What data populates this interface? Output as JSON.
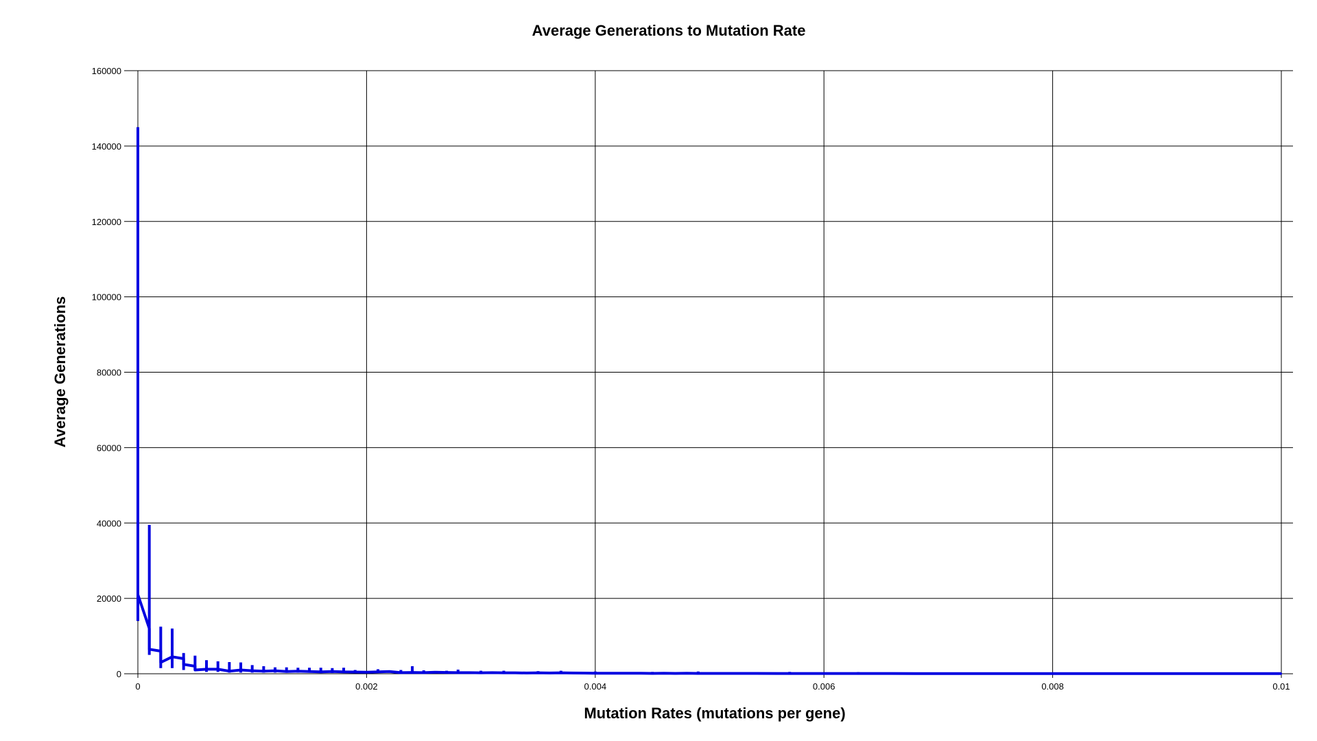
{
  "colors": {
    "series": "#0000e0",
    "grid": "#000000",
    "background": "#ffffff"
  },
  "chart_data": {
    "type": "line",
    "title": "Average Generations to Mutation Rate",
    "xlabel": "Mutation Rates (mutations per gene)",
    "ylabel": "Average Generations",
    "xlim": [
      0,
      0.01
    ],
    "ylim": [
      0,
      160000
    ],
    "x_ticks": [
      0,
      0.002,
      0.004,
      0.006,
      0.008,
      0.01
    ],
    "x_tick_labels": [
      "0",
      "0.002",
      "0.004",
      "0.006",
      "0.008",
      "0.01"
    ],
    "y_ticks": [
      0,
      20000,
      40000,
      60000,
      80000,
      100000,
      120000,
      140000,
      160000
    ],
    "y_tick_labels": [
      "0",
      "20000",
      "40000",
      "60000",
      "80000",
      "100000",
      "120000",
      "140000",
      "160000"
    ],
    "grid": true,
    "legend": "none",
    "series": [
      {
        "x": [
          0,
          0.0001,
          0.0001,
          0.0002,
          0.0002,
          0.0003,
          0.0004,
          0.0004,
          0.0005,
          0.0005,
          0.0006,
          0.0007,
          0.0008,
          0.0009,
          0.001,
          0.0011,
          0.0012,
          0.0013,
          0.0014,
          0.0015,
          0.0016,
          0.0017,
          0.0018,
          0.0019,
          0.002,
          0.0021,
          0.0022,
          0.0023,
          0.0024,
          0.0025,
          0.0026,
          0.0027,
          0.0028,
          0.0029,
          0.003,
          0.0031,
          0.0032,
          0.0033,
          0.0034,
          0.0035,
          0.0036,
          0.0037,
          0.0038,
          0.0039,
          0.004,
          0.0041,
          0.0042,
          0.0043,
          0.0044,
          0.0045,
          0.0046,
          0.0047,
          0.0048,
          0.0049,
          0.005,
          0.0052,
          0.0054,
          0.0056,
          0.0058,
          0.006,
          0.0062,
          0.0064,
          0.0066,
          0.0068,
          0.007,
          0.0072,
          0.0074,
          0.0076,
          0.0078,
          0.008,
          0.0082,
          0.0084,
          0.0086,
          0.0088,
          0.009,
          0.0092,
          0.0094,
          0.0096,
          0.0098,
          0.01
        ],
        "y": [
          21000,
          12000,
          6500,
          6000,
          3000,
          4500,
          4000,
          2500,
          2000,
          1000,
          1200,
          1200,
          700,
          1000,
          800,
          700,
          800,
          600,
          700,
          600,
          500,
          600,
          500,
          450,
          400,
          500,
          600,
          300,
          350,
          300,
          400,
          350,
          300,
          300,
          250,
          300,
          250,
          250,
          200,
          250,
          200,
          250,
          200,
          180,
          150,
          150,
          120,
          120,
          130,
          100,
          120,
          100,
          120,
          100,
          100,
          90,
          90,
          80,
          80,
          70,
          80,
          70,
          70,
          60,
          60,
          60,
          60,
          50,
          50,
          50,
          50,
          40,
          40,
          40,
          40,
          40,
          30,
          30,
          30,
          30
        ]
      }
    ],
    "error_bars": [
      {
        "x": 0,
        "low": 14000,
        "high": 145000
      },
      {
        "x": 0.0001,
        "low": 5000,
        "high": 39500
      },
      {
        "x": 0.0002,
        "low": 1500,
        "high": 12500
      },
      {
        "x": 0.0003,
        "low": 1500,
        "high": 12000
      },
      {
        "x": 0.0004,
        "low": 1000,
        "high": 5500
      },
      {
        "x": 0.0005,
        "low": 1000,
        "high": 4800
      },
      {
        "x": 0.0006,
        "low": 500,
        "high": 3600
      },
      {
        "x": 0.0007,
        "low": 500,
        "high": 3300
      },
      {
        "x": 0.0008,
        "low": 300,
        "high": 3100
      },
      {
        "x": 0.0009,
        "low": 300,
        "high": 3000
      },
      {
        "x": 0.001,
        "low": 300,
        "high": 2300
      },
      {
        "x": 0.0011,
        "low": 300,
        "high": 2000
      },
      {
        "x": 0.0012,
        "low": 300,
        "high": 1700
      },
      {
        "x": 0.0013,
        "low": 300,
        "high": 1700
      },
      {
        "x": 0.0014,
        "low": 300,
        "high": 1600
      },
      {
        "x": 0.0015,
        "low": 300,
        "high": 1600
      },
      {
        "x": 0.0016,
        "low": 300,
        "high": 1600
      },
      {
        "x": 0.0017,
        "low": 200,
        "high": 1500
      },
      {
        "x": 0.0018,
        "low": 200,
        "high": 1600
      },
      {
        "x": 0.0019,
        "low": 200,
        "high": 1000
      },
      {
        "x": 0.0021,
        "low": 200,
        "high": 1200
      },
      {
        "x": 0.0023,
        "low": 100,
        "high": 1000
      },
      {
        "x": 0.0024,
        "low": 100,
        "high": 2000
      },
      {
        "x": 0.0025,
        "low": 100,
        "high": 900
      },
      {
        "x": 0.0027,
        "low": 100,
        "high": 800
      },
      {
        "x": 0.0028,
        "low": 100,
        "high": 1100
      },
      {
        "x": 0.003,
        "low": 100,
        "high": 800
      },
      {
        "x": 0.0032,
        "low": 100,
        "high": 800
      },
      {
        "x": 0.0035,
        "low": 100,
        "high": 700
      },
      {
        "x": 0.0037,
        "low": 100,
        "high": 800
      },
      {
        "x": 0.004,
        "low": 50,
        "high": 600
      },
      {
        "x": 0.0045,
        "low": 50,
        "high": 500
      },
      {
        "x": 0.0049,
        "low": 50,
        "high": 600
      },
      {
        "x": 0.0057,
        "low": 50,
        "high": 500
      },
      {
        "x": 0.0063,
        "low": 30,
        "high": 450
      }
    ]
  }
}
